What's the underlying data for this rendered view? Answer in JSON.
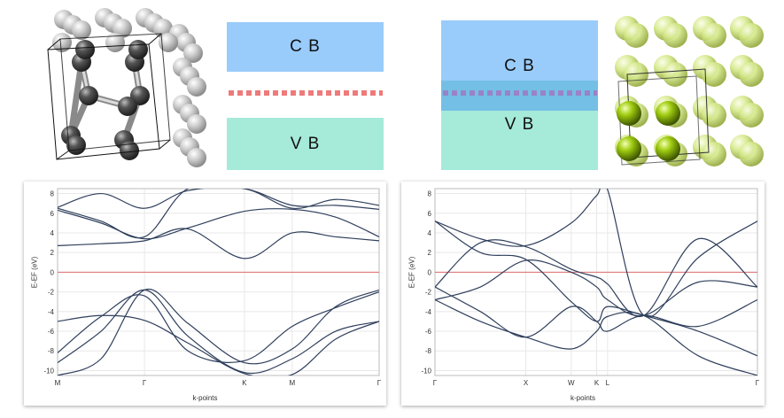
{
  "band_diagram_left": {
    "cb_label": "C B",
    "vb_label": "V B"
  },
  "band_diagram_right": {
    "cb_label": "C B",
    "vb_label": "V B"
  },
  "colors": {
    "conduction_band": "#99ccfb",
    "valence_band": "#a6ead9",
    "overlap": "#74bfe6",
    "fermi_dots_left": "#ee7a7a",
    "fermi_dots_right": "#9a82c6",
    "band_line": "#2f3f5c",
    "fermi_line": "#e06b6b",
    "grid": "#e8e8e8"
  },
  "chart_data": [
    {
      "type": "line",
      "title": "",
      "xlabel": "k-points",
      "ylabel": "E-EF (eV)",
      "ylim": [
        -10.5,
        8.5
      ],
      "yticks": [
        8,
        6,
        4,
        2,
        0,
        -2,
        -4,
        -6,
        -8,
        -10
      ],
      "xticks": [
        {
          "label": "M",
          "x": 0
        },
        {
          "label": "Γ",
          "x": 1
        },
        {
          "label": "K",
          "x": 2.15
        },
        {
          "label": "M",
          "x": 2.7
        },
        {
          "label": "Γ",
          "x": 3.7
        }
      ],
      "xlim": [
        0,
        3.7
      ],
      "fermi_level": 0,
      "series": [
        {
          "x": [
            0,
            0.5,
            1,
            1.5,
            2.15,
            2.7,
            3.2,
            3.7
          ],
          "y": [
            -10.5,
            -8.8,
            -1.8,
            -5.2,
            -9.2,
            -7.8,
            -3.5,
            -1.8
          ]
        },
        {
          "x": [
            0,
            0.5,
            1,
            1.5,
            2.15,
            2.7,
            3.2,
            3.7
          ],
          "y": [
            -9.2,
            -6.0,
            -1.8,
            -6.5,
            -10.2,
            -8.8,
            -6.0,
            -5.0
          ]
        },
        {
          "x": [
            0,
            0.5,
            1,
            1.5,
            2.15,
            2.7,
            3.2,
            3.7
          ],
          "y": [
            -8.2,
            -4.5,
            -2.4,
            -8.0,
            -9.0,
            -5.5,
            -3.6,
            -2.0
          ]
        },
        {
          "x": [
            0,
            0.5,
            1,
            1.5,
            2.15,
            2.7,
            3.2,
            3.7
          ],
          "y": [
            -5.0,
            -4.4,
            -4.9,
            -7.2,
            -10.3,
            -10.4,
            -6.8,
            -5.0
          ]
        },
        {
          "x": [
            0,
            0.5,
            1,
            1.5,
            2.15,
            2.7,
            3.2,
            3.7
          ],
          "y": [
            2.7,
            2.9,
            3.2,
            4.4,
            1.4,
            4.0,
            3.6,
            3.2
          ]
        },
        {
          "x": [
            0,
            0.5,
            1,
            1.5,
            2.15,
            2.7,
            3.2,
            3.7
          ],
          "y": [
            6.3,
            5.0,
            3.4,
            4.5,
            6.2,
            6.4,
            5.6,
            3.6
          ]
        },
        {
          "x": [
            0,
            0.5,
            1,
            1.5,
            2.15,
            2.7,
            3.2,
            3.7
          ],
          "y": [
            6.6,
            8.0,
            6.5,
            8.3,
            8.5,
            6.5,
            7.4,
            6.8
          ]
        },
        {
          "x": [
            0,
            0.5,
            1,
            1.5,
            2.15,
            2.7,
            3.2,
            3.7
          ],
          "y": [
            6.5,
            5.2,
            3.6,
            8.5,
            8.5,
            6.8,
            6.8,
            6.4
          ]
        }
      ]
    },
    {
      "type": "line",
      "title": "",
      "xlabel": "k-points",
      "ylabel": "E-EF (eV)",
      "ylim": [
        -10.5,
        8.5
      ],
      "yticks": [
        8,
        6,
        4,
        2,
        0,
        -2,
        -4,
        -6,
        -8,
        -10
      ],
      "xticks": [
        {
          "label": "Γ",
          "x": 0
        },
        {
          "label": "X",
          "x": 1
        },
        {
          "label": "W",
          "x": 1.5
        },
        {
          "label": "K",
          "x": 1.78
        },
        {
          "label": "L",
          "x": 1.9
        },
        {
          "label": "Γ",
          "x": 3.55
        }
      ],
      "xlim": [
        0,
        3.55
      ],
      "fermi_level": 0,
      "series": [
        {
          "x": [
            0,
            0.5,
            1,
            1.5,
            1.78,
            1.9,
            2.3,
            2.9,
            3.55
          ],
          "y": [
            5.2,
            2.0,
            1.3,
            -3.0,
            -5.0,
            -3.5,
            -4.4,
            -6.0,
            -8.5
          ]
        },
        {
          "x": [
            0,
            0.5,
            1,
            1.5,
            1.78,
            1.9,
            2.3,
            2.9,
            3.55
          ],
          "y": [
            5.2,
            3.4,
            2.7,
            5.0,
            7.8,
            8.4,
            -4.4,
            1.5,
            5.2
          ]
        },
        {
          "x": [
            0,
            0.5,
            1,
            1.5,
            1.78,
            1.9,
            2.3,
            2.9,
            3.55
          ],
          "y": [
            -1.5,
            3.0,
            2.6,
            0.3,
            -0.5,
            -1.2,
            -4.4,
            3.4,
            -1.5
          ]
        },
        {
          "x": [
            0,
            0.5,
            1,
            1.5,
            1.78,
            1.9,
            2.3,
            2.9,
            3.55
          ],
          "y": [
            -2.8,
            -1.5,
            1.2,
            0.0,
            -1.5,
            -2.8,
            -4.4,
            -1.0,
            -1.5
          ]
        },
        {
          "x": [
            0,
            0.5,
            1,
            1.5,
            1.78,
            1.9,
            2.3,
            2.9,
            3.55
          ],
          "y": [
            -1.5,
            -4.0,
            -6.6,
            -3.5,
            -5.0,
            -6.0,
            -4.4,
            -5.5,
            -2.8
          ]
        },
        {
          "x": [
            0,
            0.5,
            1,
            1.5,
            1.78,
            1.9,
            2.3,
            2.9,
            3.55
          ],
          "y": [
            -2.8,
            -5.0,
            -6.6,
            -7.8,
            -6.0,
            -4.5,
            -4.4,
            -8.5,
            -10.5
          ]
        }
      ]
    }
  ]
}
